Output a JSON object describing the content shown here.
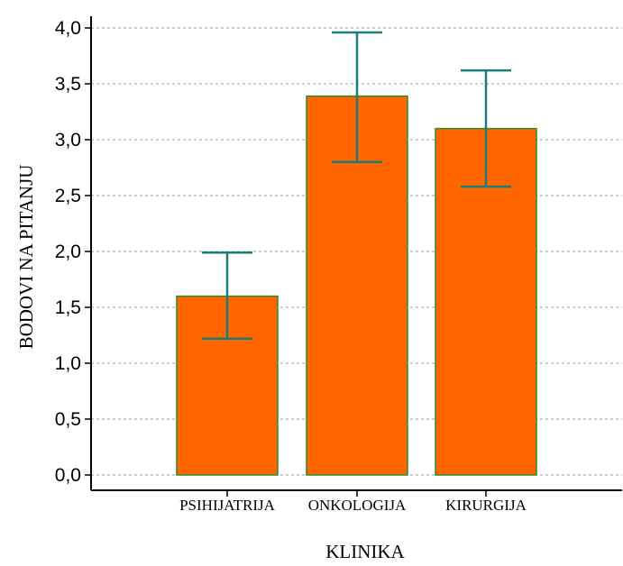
{
  "chart_data": {
    "type": "bar",
    "categories": [
      "PSIHIJATRIJA",
      "ONKOLOGIJA",
      "KIRURGIJA"
    ],
    "values": [
      1.6,
      3.39,
      3.1
    ],
    "error_low": [
      1.22,
      2.8,
      2.58
    ],
    "error_high": [
      1.99,
      3.96,
      3.62
    ],
    "xlabel": "KLINIKA",
    "ylabel": "BODOVI NA PITANJU",
    "ylim": [
      0,
      4
    ],
    "yticks": [
      "0,0",
      "0,5",
      "1,0",
      "1,5",
      "2,0",
      "2,5",
      "3,0",
      "3,5",
      "4,0"
    ],
    "ytick_values": [
      0,
      0.5,
      1,
      1.5,
      2,
      2.5,
      3,
      3.5,
      4
    ],
    "grid": true,
    "bar_color": "#ff6600",
    "bar_edge_color": "#2e8b2e",
    "error_color": "#1a7f7a"
  }
}
